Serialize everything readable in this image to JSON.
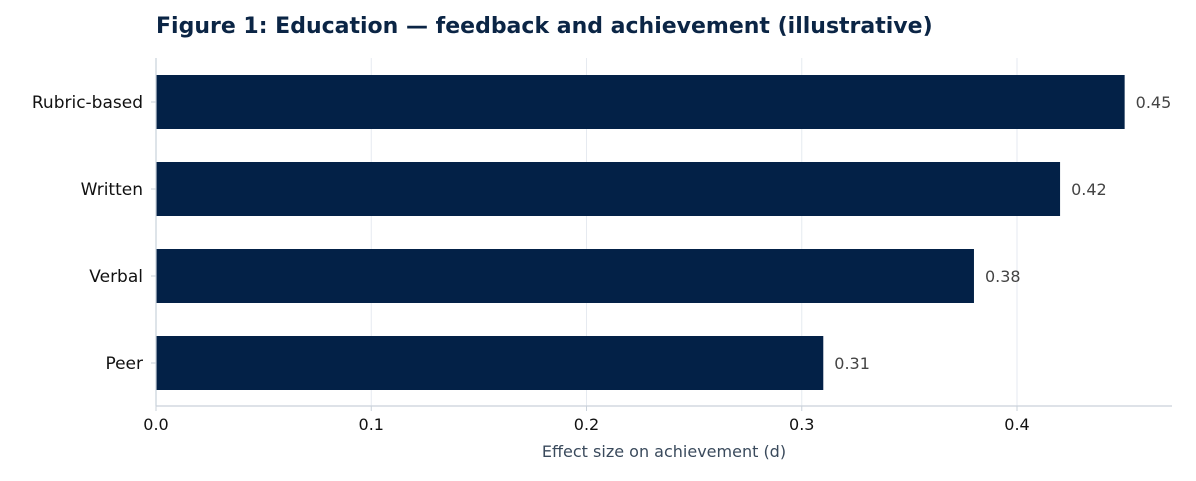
{
  "chart_data": {
    "type": "bar",
    "orientation": "horizontal",
    "title": "Figure 1: Education — feedback and achievement (illustrative)",
    "categories": [
      "Rubric-based",
      "Written",
      "Verbal",
      "Peer"
    ],
    "values": [
      0.45,
      0.42,
      0.38,
      0.31
    ],
    "value_labels": [
      "0.45",
      "0.42",
      "0.38",
      "0.31"
    ],
    "xlabel": "Effect size on achievement (d)",
    "ylabel": "",
    "xlim": [
      0,
      0.472
    ],
    "xticks": [
      0.0,
      0.1,
      0.2,
      0.3,
      0.4
    ],
    "xtick_labels": [
      "0.0",
      "0.1",
      "0.2",
      "0.3",
      "0.4"
    ],
    "grid": true,
    "bar_color": "#032147",
    "grid_color": "#e6eaf0",
    "axis_color": "#c9d1da"
  }
}
